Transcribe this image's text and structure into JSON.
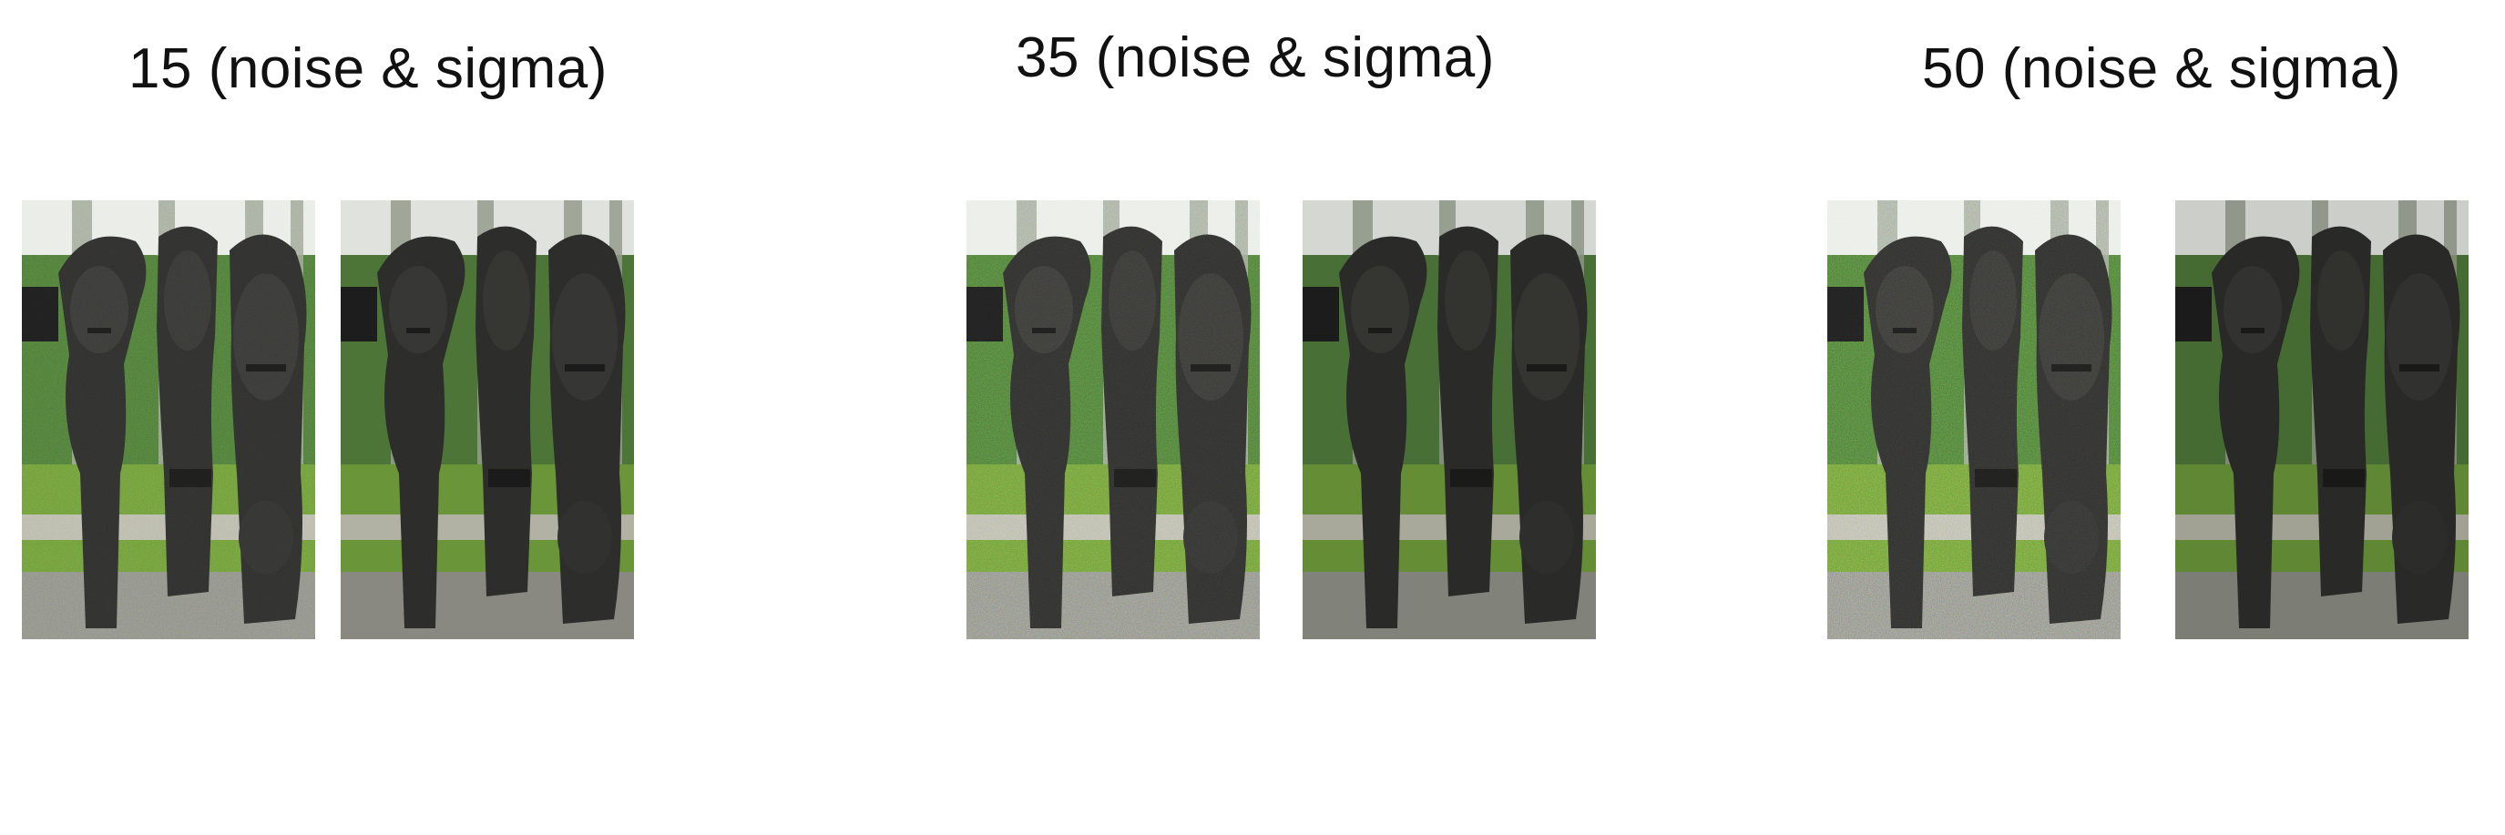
{
  "groups": [
    {
      "label": "15 (noise & sigma)"
    },
    {
      "label": "35 (noise & sigma)"
    },
    {
      "label": "50 (noise & sigma)"
    }
  ],
  "panels": [
    {
      "variant": "noisy",
      "noise_level": 15
    },
    {
      "variant": "denoised",
      "noise_level": 15
    },
    {
      "variant": "noisy",
      "noise_level": 35
    },
    {
      "variant": "denoised",
      "noise_level": 35
    },
    {
      "variant": "noisy",
      "noise_level": 50
    },
    {
      "variant": "denoised",
      "noise_level": 50
    }
  ],
  "colors": {
    "sky": "#e9ece6",
    "foliage": "#4f7a3a",
    "trunk": "#9aa392",
    "grass": "#6e9b3b",
    "path": "#b9b9aa",
    "gravel": "#8e8f86",
    "statue": "#2f2f2d",
    "statue_dark": "#1d1d1c"
  }
}
